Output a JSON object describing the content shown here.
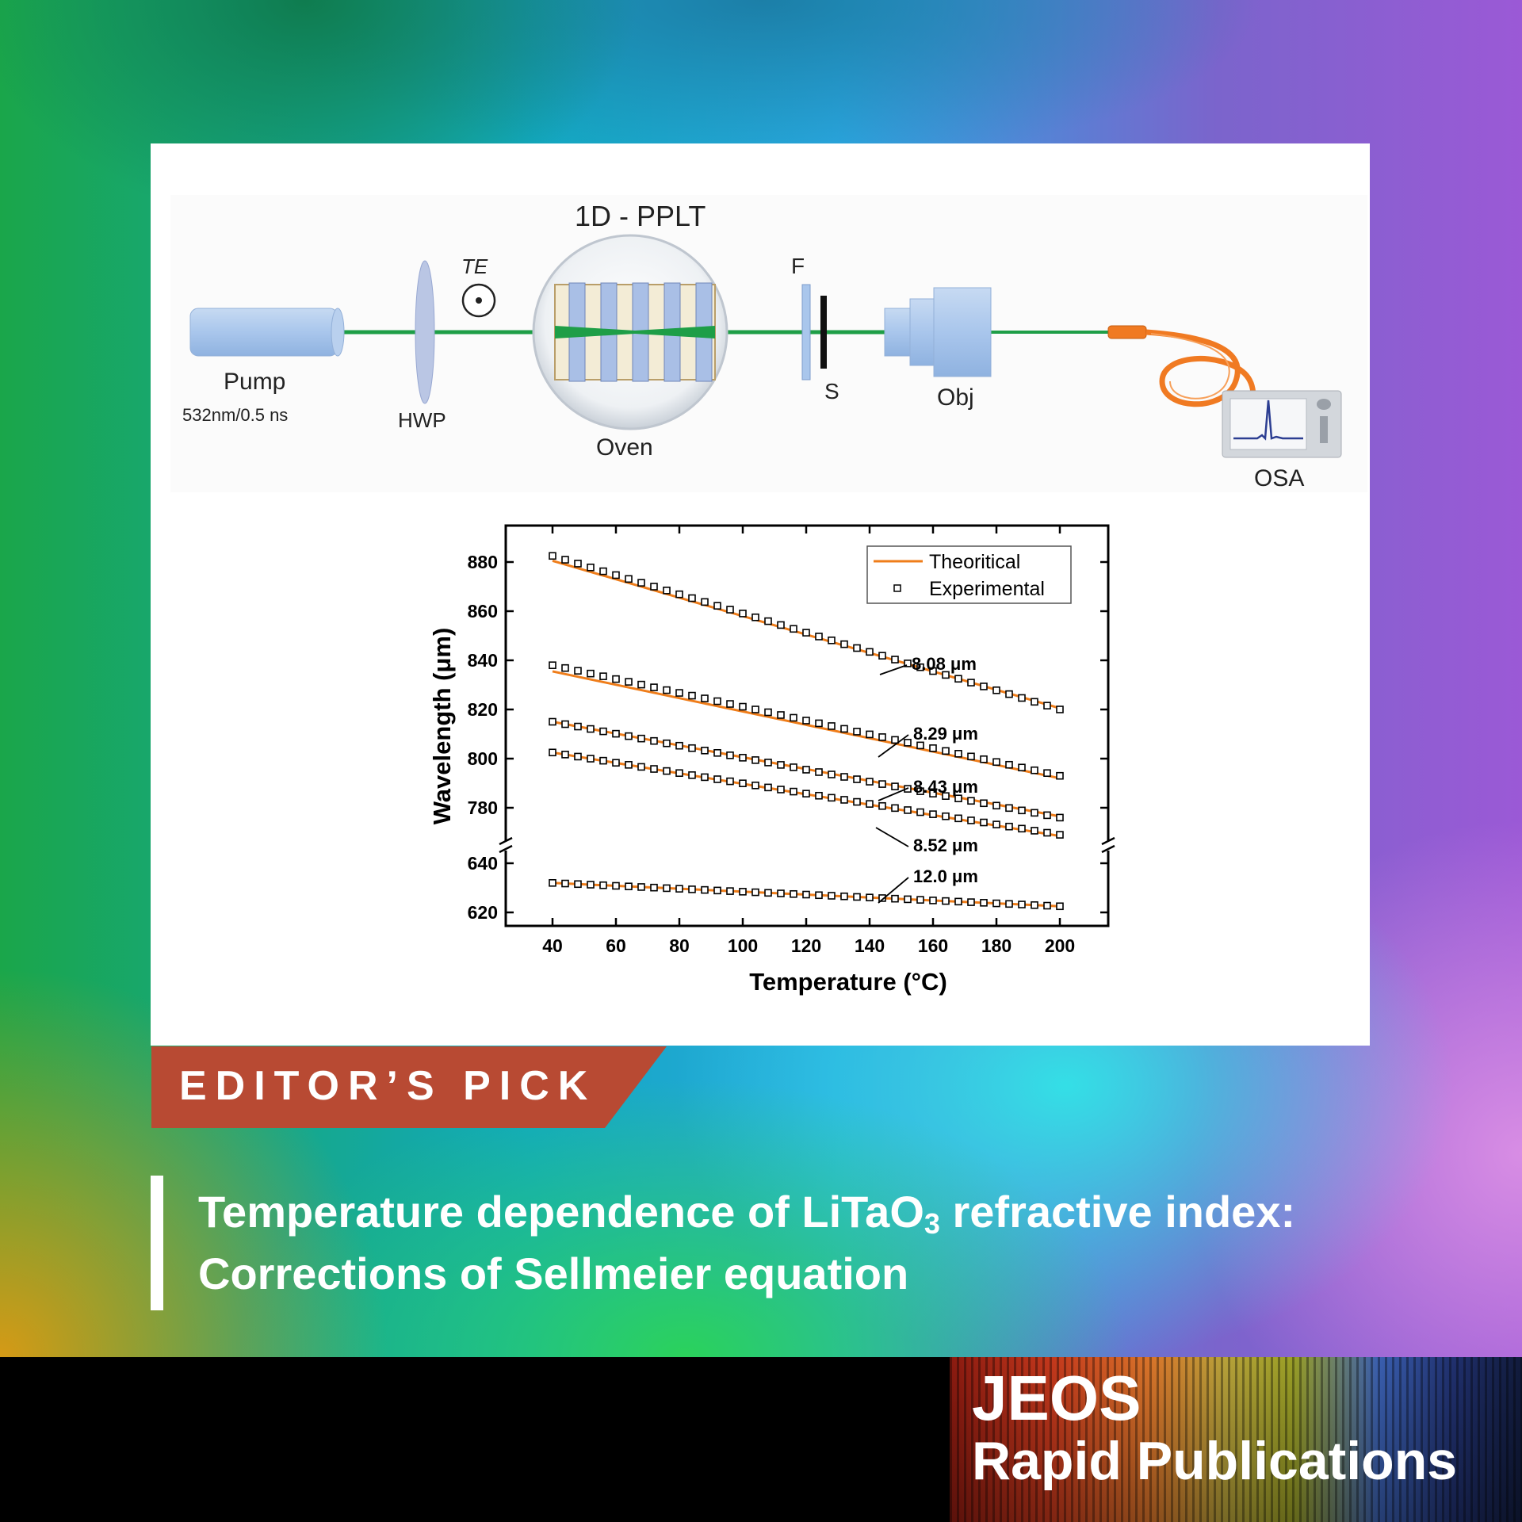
{
  "setup": {
    "crystal_label": "1D - PPLT",
    "te_label": "TE",
    "pump_label": "Pump",
    "pump_spec": "532nm/0.5 ns",
    "hwp_label": "HWP",
    "oven_label": "Oven",
    "filter_label": "F",
    "slit_label": "S",
    "objective_label": "Obj",
    "osa_label": "OSA"
  },
  "chart_data": {
    "type": "line",
    "xlabel": "Temperature (°C)",
    "ylabel": "Wavelength (μm)",
    "xlim": [
      25,
      215
    ],
    "x_ticks": [
      40,
      60,
      80,
      100,
      120,
      140,
      160,
      180,
      200
    ],
    "y_ticks_upper": [
      780,
      800,
      820,
      840,
      860,
      880
    ],
    "y_ticks_lower": [
      620,
      640
    ],
    "y_axis_break": [
      650,
      765
    ],
    "legend": {
      "position": "top-right",
      "line_label": "Theoritical",
      "marker_label": "Experimental"
    },
    "series": [
      {
        "name": "8.08 μm",
        "theory": [
          [
            40,
            880.5
          ],
          [
            200,
            820.5
          ]
        ],
        "experimental": [
          [
            40,
            882.5
          ],
          [
            200,
            820
          ]
        ]
      },
      {
        "name": "8.29 μm",
        "theory": [
          [
            40,
            835.5
          ],
          [
            200,
            792
          ]
        ],
        "experimental": [
          [
            40,
            838
          ],
          [
            200,
            793
          ]
        ]
      },
      {
        "name": "8.43 μm",
        "theory": [
          [
            40,
            815
          ],
          [
            200,
            776.5
          ]
        ],
        "experimental": [
          [
            40,
            815
          ],
          [
            200,
            776
          ]
        ]
      },
      {
        "name": "8.52 μm",
        "theory": [
          [
            40,
            802.5
          ],
          [
            200,
            768.5
          ]
        ],
        "experimental": [
          [
            40,
            802.5
          ],
          [
            200,
            769
          ]
        ]
      },
      {
        "name": "12.0 μm",
        "theory": [
          [
            40,
            632
          ],
          [
            200,
            622.5
          ]
        ],
        "experimental": [
          [
            40,
            632
          ],
          [
            200,
            622.5
          ]
        ]
      }
    ],
    "colors": {
      "theory": "#ef7d1a",
      "marker": "#000000"
    }
  },
  "banner": {
    "label": "EDITOR’S PICK",
    "color": "#b84a33"
  },
  "headline": {
    "part1": "Temperature dependence of LiTaO",
    "subscript": "3",
    "part2": " refractive index: Corrections of Sellmeier equation"
  },
  "logo": {
    "line1": "JEOS",
    "line2": "Rapid Publications"
  }
}
